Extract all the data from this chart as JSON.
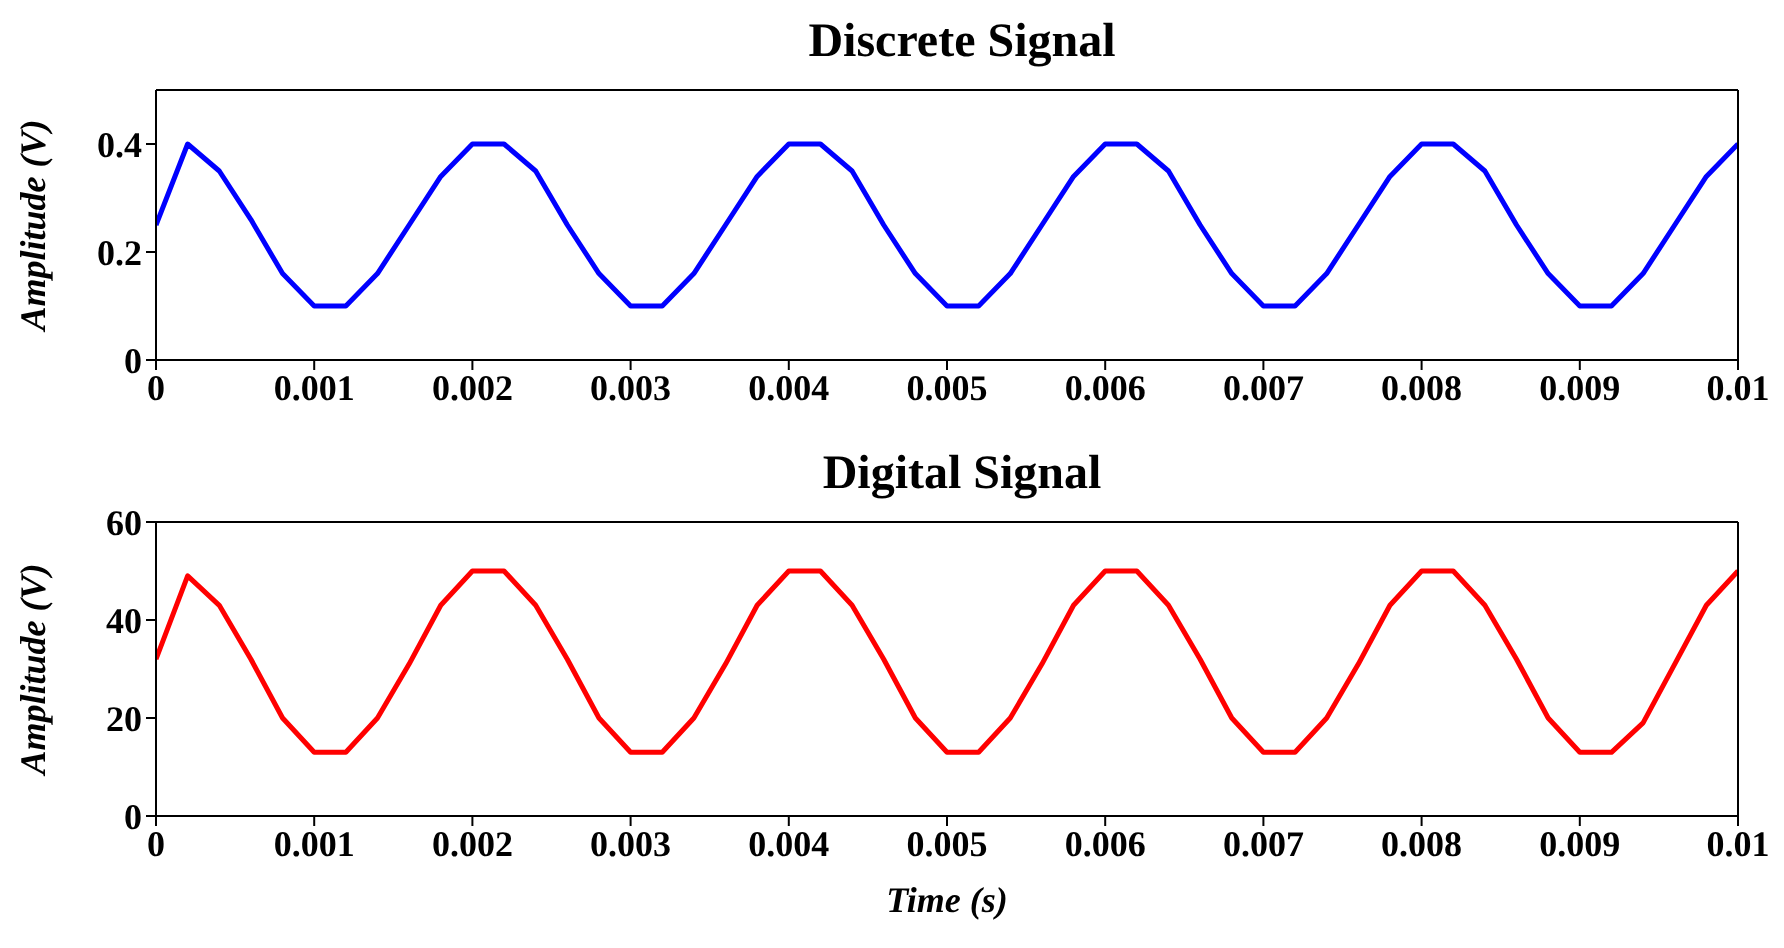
{
  "chart_data": [
    {
      "type": "line",
      "title": "Discrete Signal",
      "ylabel": "Amplitude (V)",
      "x": [
        0,
        0.0002,
        0.0004,
        0.0006,
        0.0008,
        0.001,
        0.0012,
        0.0014,
        0.0016,
        0.0018,
        0.002,
        0.0022,
        0.0024,
        0.0026,
        0.0028,
        0.003,
        0.0032,
        0.0034,
        0.0036,
        0.0038,
        0.004,
        0.0042,
        0.0044,
        0.0046,
        0.0048,
        0.005,
        0.0052,
        0.0054,
        0.0056,
        0.0058,
        0.006,
        0.0062,
        0.0064,
        0.0066,
        0.0068,
        0.007,
        0.0072,
        0.0074,
        0.0076,
        0.0078,
        0.008,
        0.0082,
        0.0084,
        0.0086,
        0.0088,
        0.009,
        0.0092,
        0.0094,
        0.0096,
        0.0098,
        0.01
      ],
      "series": [
        {
          "color": "#0000ff",
          "values": [
            0.25,
            0.4,
            0.35,
            0.26,
            0.16,
            0.1,
            0.1,
            0.16,
            0.25,
            0.34,
            0.4,
            0.4,
            0.35,
            0.25,
            0.16,
            0.1,
            0.1,
            0.16,
            0.25,
            0.34,
            0.4,
            0.4,
            0.35,
            0.25,
            0.16,
            0.1,
            0.1,
            0.16,
            0.25,
            0.34,
            0.4,
            0.4,
            0.35,
            0.25,
            0.16,
            0.1,
            0.1,
            0.16,
            0.25,
            0.34,
            0.4,
            0.4,
            0.35,
            0.25,
            0.16,
            0.1,
            0.1,
            0.16,
            0.25,
            0.34,
            0.4
          ]
        }
      ],
      "xlim": [
        0,
        0.01
      ],
      "xticks": [
        0,
        0.001,
        0.002,
        0.003,
        0.004,
        0.005,
        0.006,
        0.007,
        0.008,
        0.009,
        0.01
      ],
      "ylim": [
        0,
        0.5
      ],
      "yticks": [
        0,
        0.2,
        0.4
      ],
      "grid": false,
      "legend": false,
      "marker": "none",
      "line_style": "solid"
    },
    {
      "type": "line",
      "title": "Digital Signal",
      "xlabel": "Time (s)",
      "ylabel": "Amplitude (V)",
      "x": [
        0,
        0.0002,
        0.0004,
        0.0006,
        0.0008,
        0.001,
        0.0012,
        0.0014,
        0.0016,
        0.0018,
        0.002,
        0.0022,
        0.0024,
        0.0026,
        0.0028,
        0.003,
        0.0032,
        0.0034,
        0.0036,
        0.0038,
        0.004,
        0.0042,
        0.0044,
        0.0046,
        0.0048,
        0.005,
        0.0052,
        0.0054,
        0.0056,
        0.0058,
        0.006,
        0.0062,
        0.0064,
        0.0066,
        0.0068,
        0.007,
        0.0072,
        0.0074,
        0.0076,
        0.0078,
        0.008,
        0.0082,
        0.0084,
        0.0086,
        0.0088,
        0.009,
        0.0092,
        0.0094,
        0.0096,
        0.0098,
        0.01
      ],
      "series": [
        {
          "color": "#ff0000",
          "values": [
            32,
            49,
            43,
            32,
            20,
            13,
            13,
            20,
            31,
            43,
            50,
            50,
            43,
            32,
            20,
            13,
            13,
            20,
            31,
            43,
            50,
            50,
            43,
            32,
            20,
            13,
            13,
            20,
            31,
            43,
            50,
            50,
            43,
            32,
            20,
            13,
            13,
            20,
            31,
            43,
            50,
            50,
            43,
            32,
            20,
            13,
            13,
            19,
            31,
            43,
            50
          ]
        }
      ],
      "xlim": [
        0,
        0.01
      ],
      "xticks": [
        0,
        0.001,
        0.002,
        0.003,
        0.004,
        0.005,
        0.006,
        0.007,
        0.008,
        0.009,
        0.01
      ],
      "ylim": [
        0,
        60
      ],
      "yticks": [
        0,
        20,
        40,
        60
      ],
      "grid": false,
      "legend": false,
      "marker": "none",
      "line_style": "solid"
    }
  ]
}
